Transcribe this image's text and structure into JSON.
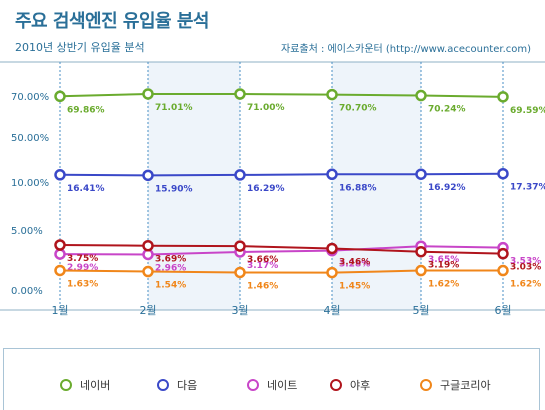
{
  "header": {
    "title": "주요 검색엔진 유입율 분석",
    "subtitle": "2010년 상반기 유입율 분석",
    "source": "자료출처 : 에이스카운터 (http://www.acecounter.com)"
  },
  "chart_data": {
    "type": "line",
    "x": [
      "1월",
      "2월",
      "3월",
      "4월",
      "5월",
      "6월"
    ],
    "y_ticks": [
      "70.00%",
      "50.00%",
      "10.00%",
      "5.00%",
      "0.00%"
    ],
    "grid": true,
    "legend_position": "bottom",
    "series": [
      {
        "name": "네이버",
        "color": "#6aab2e",
        "values": [
          69.86,
          71.01,
          71.0,
          70.7,
          70.24,
          69.59
        ],
        "labels": [
          "69.86%",
          "71.01%",
          "71.00%",
          "70.70%",
          "70.24%",
          "69.59%"
        ]
      },
      {
        "name": "다음",
        "color": "#3a48c8",
        "values": [
          16.41,
          15.9,
          16.29,
          16.88,
          16.92,
          17.37
        ],
        "labels": [
          "16.41%",
          "15.90%",
          "16.29%",
          "16.88%",
          "16.92%",
          "17.37%"
        ]
      },
      {
        "name": "네이트",
        "color": "#c845c8",
        "values": [
          2.99,
          2.96,
          3.17,
          3.28,
          3.65,
          3.53
        ],
        "labels": [
          "2.99%",
          "2.96%",
          "3.17%",
          "3.28%",
          "3.65%",
          "3.53%"
        ]
      },
      {
        "name": "야후",
        "color": "#b0141c",
        "values": [
          3.75,
          3.69,
          3.66,
          3.46,
          3.19,
          3.03
        ],
        "labels": [
          "3.75%",
          "3.69%",
          "3.66%",
          "3.46%",
          "3.19%",
          "3.03%"
        ]
      },
      {
        "name": "구글코리아",
        "color": "#f0861a",
        "values": [
          1.63,
          1.54,
          1.46,
          1.45,
          1.62,
          1.62
        ],
        "labels": [
          "1.63%",
          "1.54%",
          "1.46%",
          "1.45%",
          "1.62%",
          "1.62%"
        ]
      }
    ]
  }
}
